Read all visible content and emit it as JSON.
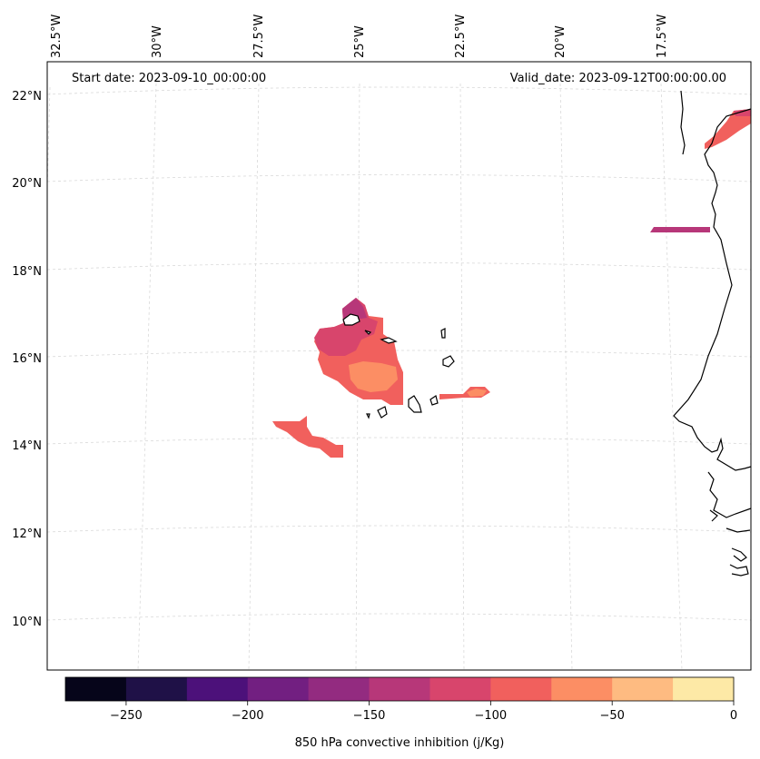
{
  "map": {
    "start_date": "Start date: 2023-09-10_00:00:00",
    "valid_date": "Valid_date: 2023-09-12T00:00:00.00",
    "lon_labels": [
      "32.5°W",
      "30°W",
      "27.5°W",
      "25°W",
      "22.5°W",
      "20°W",
      "17.5°W"
    ],
    "lat_labels": [
      "22°N",
      "20°N",
      "18°N",
      "16°N",
      "14°N",
      "12°N",
      "10°N"
    ]
  },
  "colorbar": {
    "label": "850 hPa convective inhibition (j/Kg)",
    "ticks": [
      "−250",
      "−200",
      "−150",
      "−100",
      "−50",
      "0"
    ],
    "tick_values": [
      -250,
      -200,
      -150,
      -100,
      -50,
      0
    ],
    "range": [
      -275,
      0
    ],
    "colors": [
      "#06051a",
      "#1f1147",
      "#4c117a",
      "#721f81",
      "#932b80",
      "#b73779",
      "#d8456c",
      "#f1605d",
      "#fc8e64",
      "#febb81",
      "#fde9a6"
    ]
  },
  "colors": {
    "coast": "#000000",
    "grid": "#d9d9d9"
  }
}
